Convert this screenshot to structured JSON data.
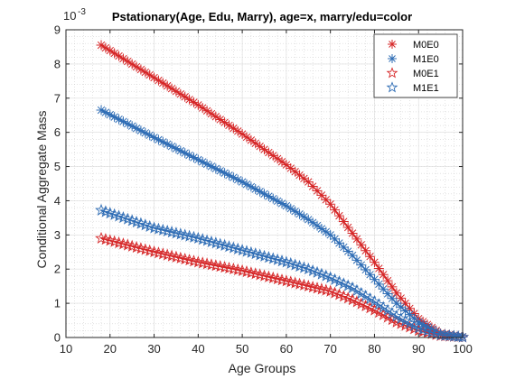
{
  "chart_data": {
    "type": "line",
    "title": "Pstationary(Age, Edu, Marry), age=x, marry/edu=color",
    "xlabel": "Age Groups",
    "ylabel": "Conditional Aggregate Mass",
    "y_exponent_label": "10",
    "y_exponent_power": "-3",
    "xlim": [
      10,
      100
    ],
    "ylim": [
      0,
      9
    ],
    "xticks": [
      "10",
      "20",
      "30",
      "40",
      "50",
      "60",
      "70",
      "80",
      "90",
      "100"
    ],
    "yticks": [
      "0",
      "1",
      "2",
      "3",
      "4",
      "5",
      "6",
      "7",
      "8",
      "9"
    ],
    "grid": "minor",
    "legend_position": "top-right",
    "x": [
      18,
      30,
      40,
      50,
      60,
      65,
      70,
      75,
      80,
      85,
      90,
      95,
      100
    ],
    "series": [
      {
        "name": "M0E0",
        "color": "#d62728",
        "marker": "asterisk",
        "values": [
          8.55,
          7.6,
          6.8,
          5.95,
          5.05,
          4.55,
          3.9,
          3.05,
          2.2,
          1.3,
          0.55,
          0.12,
          0.02
        ]
      },
      {
        "name": "M1E0",
        "color": "#2f6db5",
        "marker": "asterisk",
        "values": [
          6.65,
          5.85,
          5.2,
          4.55,
          3.85,
          3.45,
          3.0,
          2.4,
          1.7,
          1.0,
          0.45,
          0.1,
          0.02
        ]
      },
      {
        "name": "M0E1",
        "color": "#d62728",
        "marker": "star",
        "values": [
          2.9,
          2.5,
          2.2,
          1.95,
          1.65,
          1.5,
          1.35,
          1.1,
          0.8,
          0.45,
          0.2,
          0.05,
          0.01
        ]
      },
      {
        "name": "M1E1",
        "color": "#2f6db5",
        "marker": "star",
        "values": [
          3.72,
          3.2,
          2.9,
          2.55,
          2.2,
          2.0,
          1.75,
          1.45,
          1.05,
          0.62,
          0.27,
          0.07,
          0.01
        ]
      }
    ]
  }
}
